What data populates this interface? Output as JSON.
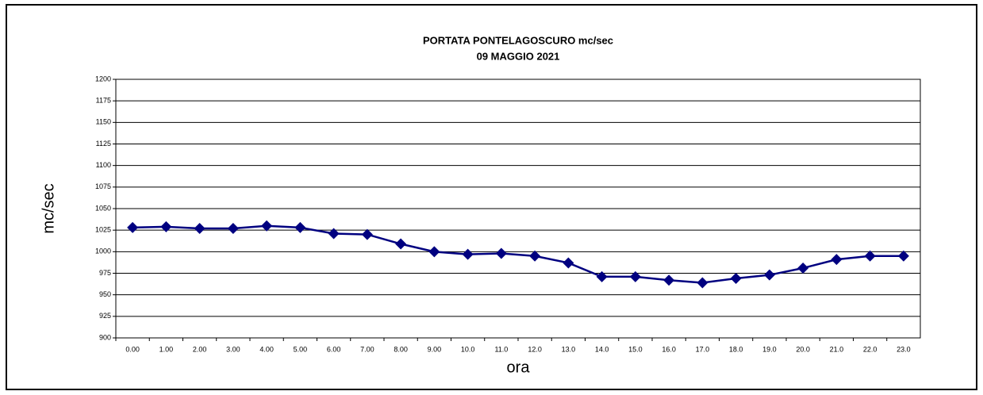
{
  "chart_data": {
    "type": "line",
    "title": [
      "PORTATA PONTELAGOSCURO mc/sec",
      "09 MAGGIO 2021"
    ],
    "x_label": "ora",
    "y_label": "mc/sec",
    "categories": [
      "0.00",
      "1.00",
      "2.00",
      "3.00",
      "4.00",
      "5.00",
      "6.00",
      "7.00",
      "8.00",
      "9.00",
      "10.0",
      "11.0",
      "12.0",
      "13.0",
      "14.0",
      "15.0",
      "16.0",
      "17.0",
      "18.0",
      "19.0",
      "20.0",
      "21.0",
      "22.0",
      "23.0"
    ],
    "values": [
      1028,
      1029,
      1027,
      1027,
      1030,
      1028,
      1021,
      1020,
      1009,
      1000,
      997,
      998,
      995,
      987,
      971,
      971,
      967,
      964,
      969,
      973,
      981,
      991,
      995,
      995
    ],
    "color": "#000080",
    "ylim": [
      900,
      1200
    ],
    "yticks": [
      900,
      925,
      950,
      975,
      1000,
      1025,
      1050,
      1075,
      1100,
      1125,
      1150,
      1175,
      1200
    ],
    "grid": true
  }
}
